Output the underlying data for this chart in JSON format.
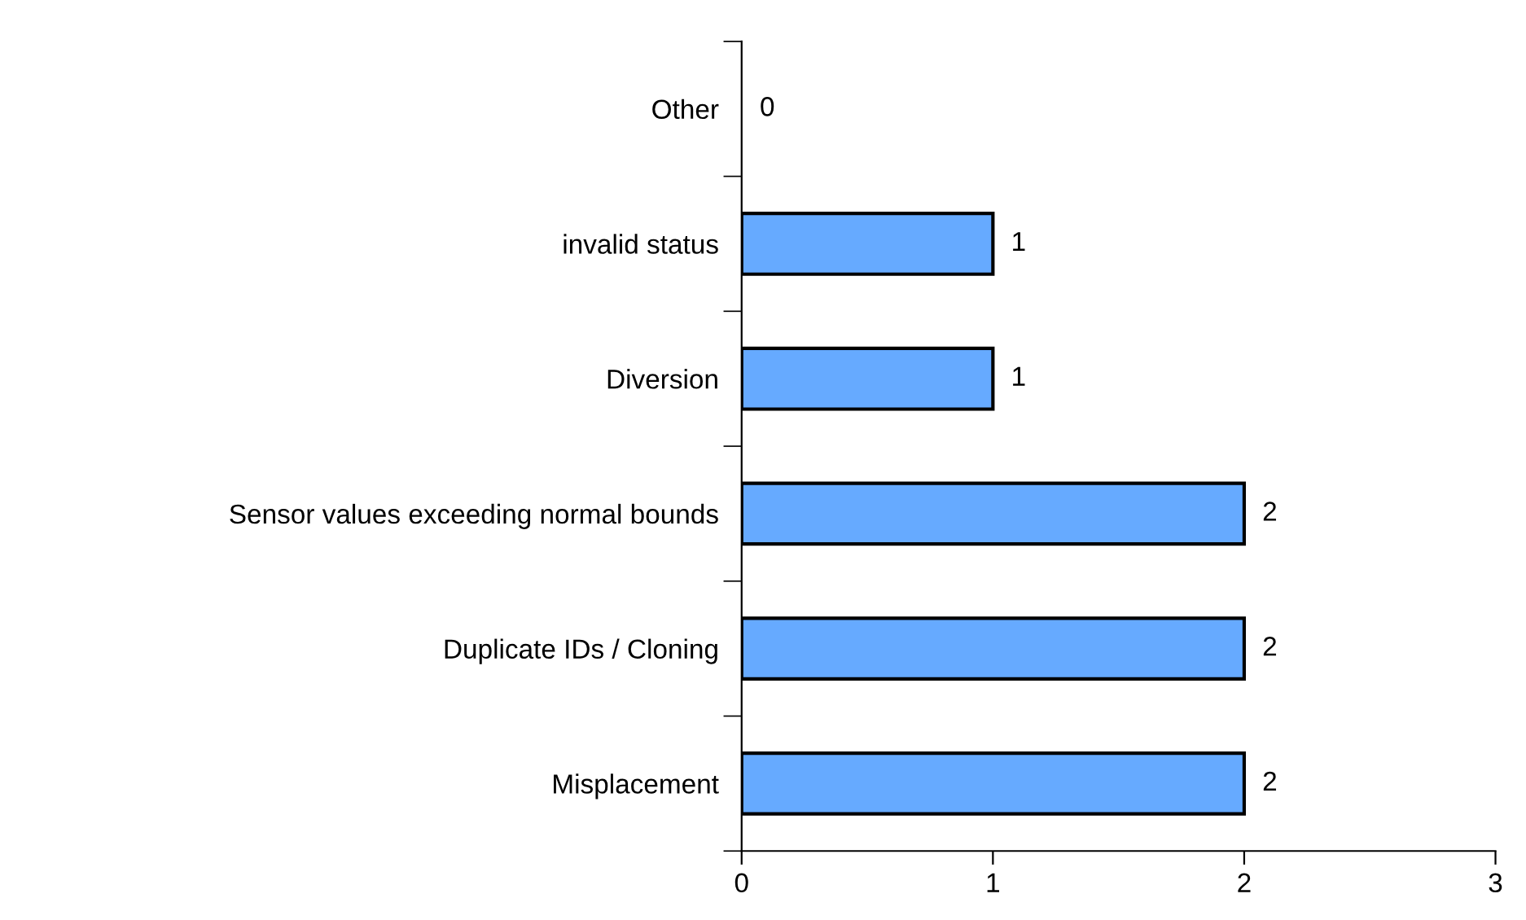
{
  "chart_data": {
    "type": "bar",
    "orientation": "horizontal",
    "categories": [
      "Other",
      "invalid status",
      "Diversion",
      "Sensor values exceeding normal bounds",
      "Duplicate IDs / Cloning",
      "Misplacement"
    ],
    "values": [
      0,
      1,
      1,
      2,
      2,
      2
    ],
    "color": "#66aaff",
    "xlim": [
      0,
      3
    ],
    "xticks": [
      0,
      1,
      2,
      3
    ],
    "grid": false,
    "data_labels": true
  }
}
